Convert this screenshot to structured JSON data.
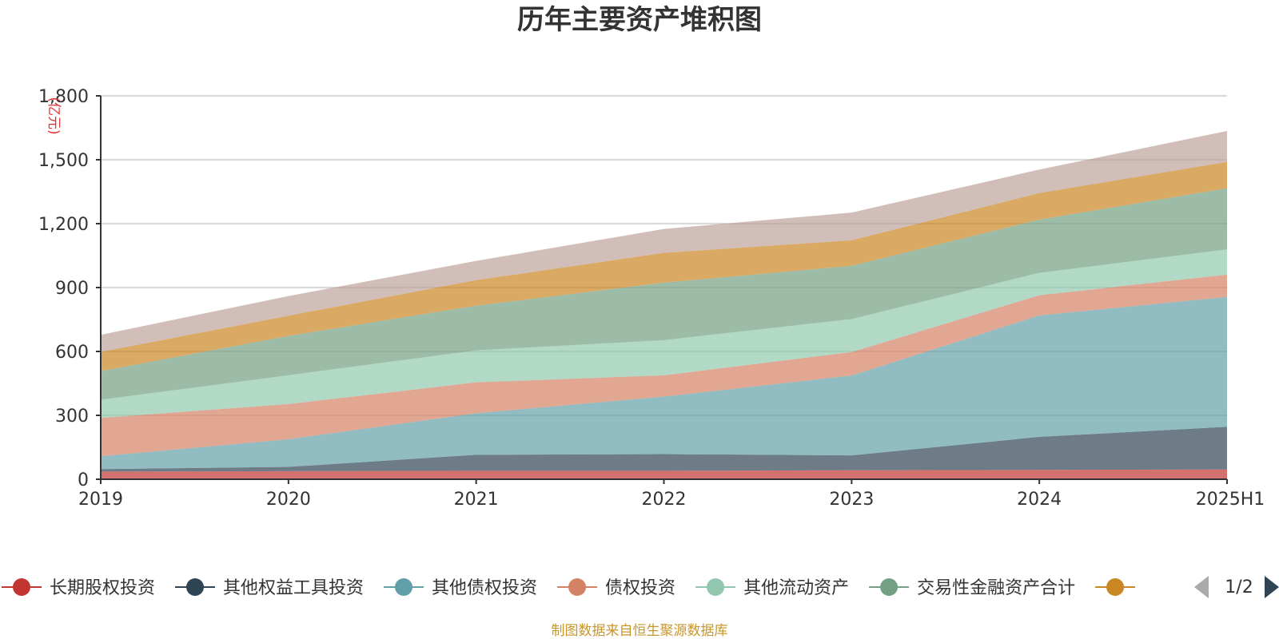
{
  "chart_data": {
    "type": "area",
    "stacked": true,
    "title": "历年主要资产堆积图",
    "unit_label": "(亿元)",
    "x": [
      "2019",
      "2020",
      "2021",
      "2022",
      "2023",
      "2024",
      "2025H1"
    ],
    "ylim": [
      0,
      1800
    ],
    "yticks": [
      0,
      300,
      600,
      900,
      1200,
      1500,
      1800
    ],
    "ytick_labels": [
      "0",
      "300",
      "600",
      "900",
      "1,200",
      "1,500",
      "1,800"
    ],
    "grid": true,
    "legend_position": "bottom",
    "series": [
      {
        "name": "长期股权投资",
        "color": "#c23531",
        "values": [
          36,
          38,
          40,
          40,
          42,
          44,
          46
        ]
      },
      {
        "name": "其他权益工具投资",
        "color": "#2f4554",
        "values": [
          12,
          20,
          75,
          78,
          70,
          155,
          200
        ]
      },
      {
        "name": "其他债权投资",
        "color": "#61a0a8",
        "values": [
          60,
          130,
          195,
          270,
          375,
          570,
          610
        ]
      },
      {
        "name": "债权投资",
        "color": "#d48265",
        "values": [
          180,
          165,
          145,
          100,
          110,
          95,
          105
        ]
      },
      {
        "name": "其他流动资产",
        "color": "#91c7ae",
        "values": [
          85,
          135,
          150,
          165,
          155,
          105,
          118
        ]
      },
      {
        "name": "交易性金融资产合计",
        "color": "#749f83",
        "values": [
          135,
          185,
          210,
          270,
          250,
          250,
          287
        ]
      },
      {
        "name": "",
        "color": "#ca8622",
        "values": [
          90,
          95,
          120,
          140,
          120,
          125,
          124
        ]
      },
      {
        "name": "",
        "color": "#bda29a",
        "values": [
          80,
          92,
          90,
          112,
          130,
          110,
          145
        ]
      }
    ]
  },
  "legend": {
    "pager_label": "1/2"
  },
  "source_text": "制图数据来自恒生聚源数据库"
}
